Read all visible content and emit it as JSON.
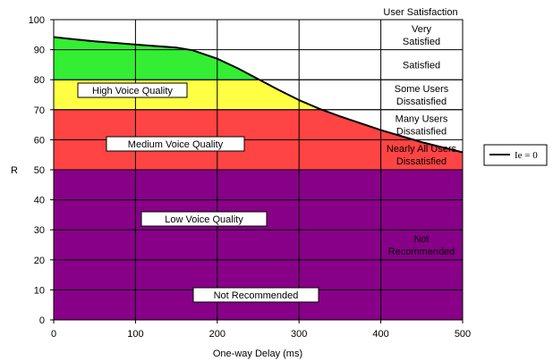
{
  "chart_data": {
    "type": "line",
    "title": "User Satisfaction",
    "xlabel": "One-way Delay (ms)",
    "ylabel": "R",
    "xlim": [
      0,
      500
    ],
    "ylim": [
      0,
      100
    ],
    "x_ticks": [
      0,
      100,
      200,
      300,
      400,
      500
    ],
    "y_ticks": [
      0,
      10,
      20,
      30,
      40,
      50,
      60,
      70,
      80,
      90,
      100
    ],
    "grid": true,
    "legend_position": "right",
    "series": [
      {
        "name": "Ie = 0",
        "color": "#000000",
        "x": [
          0,
          20,
          50,
          100,
          150,
          170,
          200,
          225,
          250,
          275,
          300,
          325,
          350,
          400,
          450,
          500
        ],
        "y": [
          94.2,
          93.6,
          92.8,
          91.7,
          90.7,
          89.8,
          87.0,
          83.8,
          80.2,
          76.6,
          73.2,
          70.3,
          67.8,
          63.2,
          59.2,
          55.8
        ]
      }
    ],
    "bands": [
      {
        "label": "High Voice Quality",
        "from": 80,
        "to": 100,
        "color": "#33ee33"
      },
      {
        "label": "Medium Voice Quality",
        "from": 70,
        "to": 80,
        "color": "#ffff44"
      },
      {
        "label": "Low Voice Quality",
        "from": 50,
        "to": 70,
        "color": "#ff4444"
      },
      {
        "label": "Not Recommended",
        "from": 0,
        "to": 50,
        "color": "#880088"
      }
    ],
    "satisfaction_labels": [
      {
        "lines": [
          "Very",
          "Satisfied"
        ],
        "color": "#000000"
      },
      {
        "lines": [
          "Satisfied"
        ],
        "color": "#000000"
      },
      {
        "lines": [
          "Some Users",
          "Dissatisfied"
        ],
        "color": "#000000"
      },
      {
        "lines": [
          "Many Users",
          "Dissatisfied"
        ],
        "color": "#000000"
      },
      {
        "lines": [
          "Nearly All Users",
          "Dissatisfied"
        ],
        "color": "#ffffff"
      },
      {
        "lines": [
          "Not",
          "Recommended"
        ],
        "color": "#ffffff"
      }
    ]
  }
}
